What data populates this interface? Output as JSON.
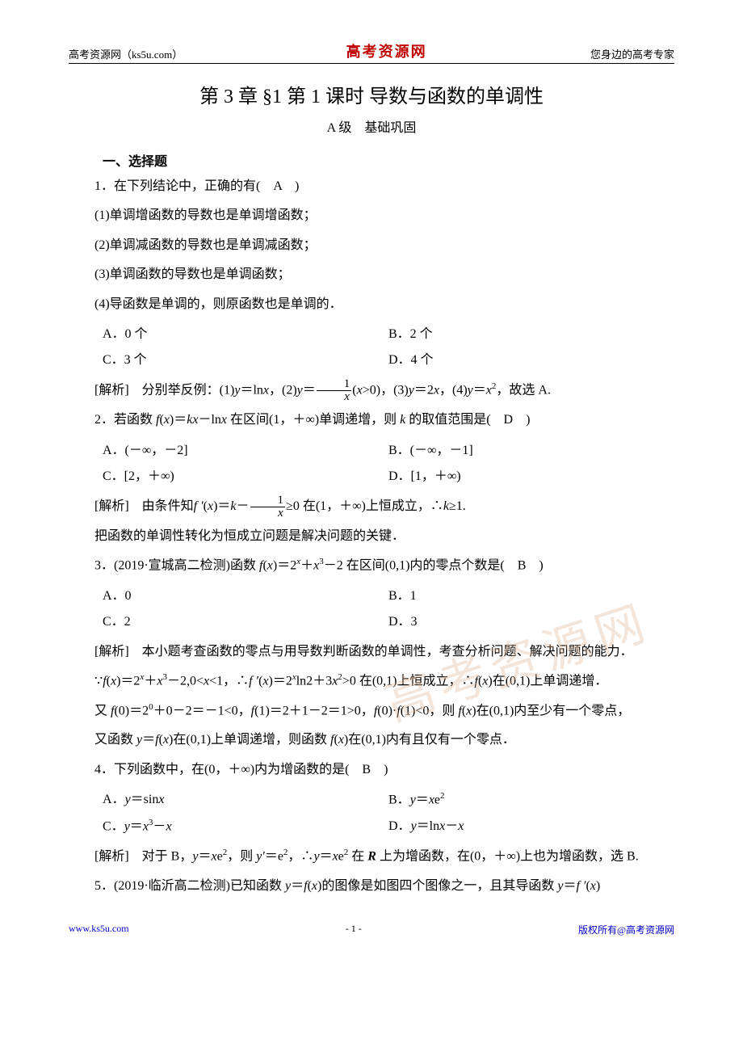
{
  "header": {
    "left": "高考资源网（ks5u.com）",
    "centerLogo": "高考资源网",
    "right": "您身边的高考专家"
  },
  "title": "第 3 章  §1  第 1 课时  导数与函数的单调性",
  "subtitle": "A 级　基础巩固",
  "sectionHeading": "一、选择题",
  "q1": {
    "stem": "1．在下列结论中，正确的有(　A　)",
    "s1": "(1)单调增函数的导数也是单调增函数；",
    "s2": "(2)单调减函数的导数也是单调减函数；",
    "s3": "(3)单调函数的导数也是单调函数；",
    "s4": "(4)导函数是单调的，则原函数也是单调的．",
    "optA": "A．0 个",
    "optB": "B．2 个",
    "optC": "C．3 个",
    "optD": "D．4 个",
    "sol_prefix": "[解析]　分别举反例：(1)",
    "sol_y": "y",
    "sol_eq1": "＝ln",
    "sol_x1": "x",
    "sol_c2": "，(2)",
    "sol_y2": "y",
    "sol_eq2": "＝",
    "frac_num": "1",
    "frac_den": "x",
    "sol_paren": "(",
    "sol_x2": "x",
    "sol_gt0": ">0)，(3)",
    "sol_y3": "y",
    "sol_eq3a": "＝2",
    "sol_x3": "x",
    "sol_c4": "，(4)",
    "sol_y4": "y",
    "sol_eq4a": "＝",
    "sol_x4": "x",
    "sol_sq": "2",
    "sol_end": "，故选 A."
  },
  "q2": {
    "stem_a": "2．若函数 ",
    "f": "f",
    "stem_b": "(",
    "x": "x",
    "stem_c": ")＝",
    "k": "k",
    "stem_d": "x",
    "stem_e": "－ln",
    "stem_f": "x",
    "stem_g": " 在区间(1，＋∞)单调递增，则 ",
    "stem_h": " 的取值范围是(　D　)",
    "optA": "A．(－∞，－2]",
    "optB": "B．(－∞，－1]",
    "optC": "C．[2，＋∞)",
    "optD": "D．[1，＋∞)",
    "sol_a": "[解析]　由条件知",
    "sol_fp": "f ′",
    "sol_b": "(",
    "sol_c": ")＝",
    "sol_d": "－",
    "frac_num": "1",
    "frac_den": "x",
    "sol_e": "≥0 在(1，＋∞)上恒成立，∴",
    "sol_f": "≥1.",
    "note": "把函数的单调性转化为恒成立问题是解决问题的关键．"
  },
  "q3": {
    "stem_a": "3．(2019·宣城高二检测)函数 ",
    "f": "f",
    "stem_b": "(",
    "x": "x",
    "stem_c": ")＝2",
    "stem_exp_x": "x",
    "stem_d": "＋",
    "stem_x3": "x",
    "stem_cube": "3",
    "stem_e": "－2 在区间(0,1)内的零点个数是(　B　)",
    "optA": "A．0",
    "optB": "B．1",
    "optC": "C．2",
    "optD": "D．3",
    "sol1": "[解析]　本小题考查函数的零点与用导数判断函数的单调性，考查分析问题、解决问题的能力．",
    "sol2a": "∵",
    "sol2b": "(",
    "sol2c": ")＝2",
    "sol2d": "＋",
    "sol2e": "－2,0<",
    "sol2f": "<1，∴",
    "fp": "f ′",
    "sol2g": "(",
    "sol2h": ")＝2",
    "sol2i": "ln2＋3",
    "sol2_sq": "2",
    "sol2j": ">0 在(0,1)上恒成立，∴",
    "sol2k": "(",
    "sol2l": ")在(0,1)上单调递增．",
    "sol3a": "又 ",
    "sol3b": "(0)＝2",
    "sol3_z": "0",
    "sol3c": "＋0－2＝－1<0，",
    "sol3d": "(1)＝2＋1－2＝1>0，",
    "sol3e": "(0)·",
    "sol3f": "(1)<0，则 ",
    "sol3g": "(",
    "sol3h": ")在(0,1)内至少有一个零点，",
    "sol4a": "又函数 ",
    "sol_y": "y",
    "sol4b": "＝",
    "sol4c": "(",
    "sol4d": ")在(0,1)上单调递增，则函数 ",
    "sol4e": "(",
    "sol4f": ")在(0,1)内有且仅有一个零点．"
  },
  "q4": {
    "stem": "4．下列函数中，在(0，＋∞)内为增函数的是(　B　)",
    "optA_a": "A．",
    "y": "y",
    "optA_b": "＝sin",
    "x": "x",
    "optB_a": "B．",
    "optB_b": "＝",
    "optB_c": "e",
    "optB_sq": "2",
    "optC_a": "C．",
    "optC_b": "＝",
    "optC_cube": "3",
    "optC_c": "－",
    "optD_a": "D．",
    "optD_b": "＝ln",
    "optD_c": "－",
    "sol_a": "[解析]　对于 B，",
    "sol_b": "＝",
    "sol_c": "e",
    "sol_d": "，则 ",
    "yp": "y′",
    "sol_e": "＝e",
    "sol_f": "，∴",
    "sol_g": "＝",
    "sol_h": "e",
    "sol_i": " 在 ",
    "R": "R",
    "sol_j": " 上为增函数，在(0，＋∞)上也为增函数，选 B."
  },
  "q5": {
    "stem_a": "5．(2019·临沂高二检测)已知函数 ",
    "y": "y",
    "stem_b": "＝",
    "f": "f",
    "stem_c": "(",
    "x": "x",
    "stem_d": ")的图像是如图四个图像之一，且其导函数 ",
    "stem_e": "＝",
    "fp": "f ′",
    "stem_f": "(",
    "stem_g": ")"
  },
  "footer": {
    "left": "www.ks5u.com",
    "center": "- 1 -",
    "right": "版权所有@高考资源网"
  },
  "watermark": "高考资源网"
}
